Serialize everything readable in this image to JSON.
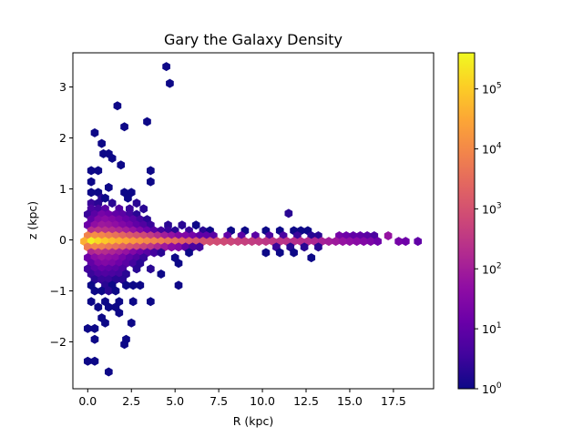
{
  "chart_data": {
    "type": "hexbin",
    "title": "Gary the Galaxy Density",
    "xlabel": "R (kpc)",
    "ylabel": "z (kpc)",
    "xlim": [
      -0.85,
      19.8
    ],
    "ylim": [
      -2.92,
      3.67
    ],
    "xticks": [
      0.0,
      2.5,
      5.0,
      7.5,
      10.0,
      12.5,
      15.0,
      17.5
    ],
    "xtick_labels": [
      "0.0",
      "2.5",
      "5.0",
      "7.5",
      "10.0",
      "12.5",
      "15.0",
      "17.5"
    ],
    "yticks": [
      -2,
      -1,
      0,
      1,
      2,
      3
    ],
    "ytick_labels": [
      "−2",
      "−1",
      "0",
      "1",
      "2",
      "3"
    ],
    "colormap": "plasma",
    "color_scale": "log",
    "colorbar_range": [
      1,
      400000
    ],
    "colorbar_ticks": [
      {
        "base": "10",
        "exp": "0",
        "value": 1
      },
      {
        "base": "10",
        "exp": "1",
        "value": 10
      },
      {
        "base": "10",
        "exp": "2",
        "value": 100
      },
      {
        "base": "10",
        "exp": "3",
        "value": 1000
      },
      {
        "base": "10",
        "exp": "4",
        "value": 10000
      },
      {
        "base": "10",
        "exp": "5",
        "value": 100000
      }
    ],
    "points": [
      [
        4.5,
        3.4,
        1
      ],
      [
        4.7,
        3.07,
        1
      ],
      [
        1.7,
        2.63,
        1
      ],
      [
        3.4,
        2.32,
        1
      ],
      [
        2.1,
        2.22,
        1
      ],
      [
        0.4,
        2.1,
        1
      ],
      [
        0.8,
        1.89,
        1
      ],
      [
        0.9,
        1.69,
        1
      ],
      [
        1.2,
        1.69,
        1
      ],
      [
        1.4,
        1.6,
        1
      ],
      [
        1.9,
        1.47,
        1
      ],
      [
        0.2,
        1.36,
        1
      ],
      [
        0.6,
        1.36,
        1
      ],
      [
        3.6,
        1.36,
        1
      ],
      [
        0.2,
        1.14,
        1
      ],
      [
        3.6,
        1.14,
        1
      ],
      [
        1.2,
        1.03,
        1
      ],
      [
        0.2,
        0.93,
        1
      ],
      [
        0.6,
        0.93,
        1
      ],
      [
        2.1,
        0.93,
        1
      ],
      [
        2.5,
        0.93,
        1
      ],
      [
        0.8,
        0.82,
        2
      ],
      [
        1.0,
        0.82,
        1
      ],
      [
        2.3,
        0.82,
        1
      ],
      [
        11.5,
        0.52,
        2
      ],
      [
        0.2,
        0.72,
        3
      ],
      [
        0.6,
        0.72,
        2
      ],
      [
        1.4,
        0.72,
        2
      ],
      [
        2.8,
        0.72,
        2
      ],
      [
        0.2,
        0.61,
        5
      ],
      [
        0.6,
        0.61,
        4
      ],
      [
        1.0,
        0.61,
        8
      ],
      [
        1.8,
        0.61,
        6
      ],
      [
        2.4,
        0.61,
        3
      ],
      [
        3.2,
        0.61,
        2
      ],
      [
        0.0,
        0.5,
        3
      ],
      [
        0.4,
        0.5,
        8
      ],
      [
        0.8,
        0.5,
        20
      ],
      [
        1.2,
        0.5,
        15
      ],
      [
        1.6,
        0.5,
        10
      ],
      [
        2.0,
        0.5,
        8
      ],
      [
        2.4,
        0.5,
        4
      ],
      [
        2.8,
        0.5,
        2
      ],
      [
        0.2,
        0.4,
        10
      ],
      [
        0.6,
        0.4,
        30
      ],
      [
        1.0,
        0.4,
        40
      ],
      [
        1.4,
        0.4,
        30
      ],
      [
        1.8,
        0.4,
        20
      ],
      [
        2.2,
        0.4,
        12
      ],
      [
        2.6,
        0.4,
        8
      ],
      [
        3.0,
        0.4,
        4
      ],
      [
        3.4,
        0.4,
        2
      ],
      [
        0.0,
        0.29,
        15
      ],
      [
        0.4,
        0.29,
        50
      ],
      [
        0.8,
        0.29,
        80
      ],
      [
        1.2,
        0.29,
        70
      ],
      [
        1.6,
        0.29,
        50
      ],
      [
        2.0,
        0.29,
        30
      ],
      [
        2.4,
        0.29,
        20
      ],
      [
        2.8,
        0.29,
        10
      ],
      [
        3.2,
        0.29,
        6
      ],
      [
        3.6,
        0.29,
        3
      ],
      [
        4.6,
        0.29,
        2
      ],
      [
        5.4,
        0.29,
        2
      ],
      [
        6.2,
        0.29,
        1
      ],
      [
        0.2,
        0.18,
        200
      ],
      [
        0.6,
        0.18,
        300
      ],
      [
        1.0,
        0.18,
        250
      ],
      [
        1.4,
        0.18,
        200
      ],
      [
        1.8,
        0.18,
        150
      ],
      [
        2.2,
        0.18,
        100
      ],
      [
        2.6,
        0.18,
        60
      ],
      [
        3.0,
        0.18,
        30
      ],
      [
        3.4,
        0.18,
        15
      ],
      [
        3.8,
        0.18,
        8
      ],
      [
        4.2,
        0.18,
        4
      ],
      [
        4.6,
        0.18,
        3
      ],
      [
        5.0,
        0.18,
        2
      ],
      [
        5.8,
        0.18,
        3
      ],
      [
        6.6,
        0.18,
        2
      ],
      [
        7.0,
        0.18,
        1
      ],
      [
        8.2,
        0.18,
        1
      ],
      [
        9.0,
        0.18,
        1
      ],
      [
        10.2,
        0.18,
        1
      ],
      [
        11.0,
        0.18,
        1
      ],
      [
        11.8,
        0.18,
        1
      ],
      [
        12.2,
        0.18,
        1
      ],
      [
        12.6,
        0.18,
        1
      ],
      [
        0.0,
        0.08,
        8000
      ],
      [
        0.4,
        0.08,
        12000
      ],
      [
        0.8,
        0.08,
        9000
      ],
      [
        1.2,
        0.08,
        6000
      ],
      [
        1.6,
        0.08,
        4000
      ],
      [
        2.0,
        0.08,
        2500
      ],
      [
        2.4,
        0.08,
        1500
      ],
      [
        2.8,
        0.08,
        1000
      ],
      [
        3.2,
        0.08,
        700
      ],
      [
        3.6,
        0.08,
        400
      ],
      [
        4.0,
        0.08,
        200
      ],
      [
        4.4,
        0.08,
        100
      ],
      [
        4.8,
        0.08,
        60
      ],
      [
        5.2,
        0.08,
        30
      ],
      [
        5.6,
        0.08,
        30
      ],
      [
        6.0,
        0.08,
        20
      ],
      [
        6.4,
        0.08,
        10
      ],
      [
        6.8,
        0.08,
        10
      ],
      [
        7.2,
        0.08,
        8
      ],
      [
        8.0,
        0.08,
        10
      ],
      [
        8.8,
        0.08,
        8
      ],
      [
        9.6,
        0.08,
        8
      ],
      [
        10.4,
        0.08,
        5
      ],
      [
        11.2,
        0.08,
        5
      ],
      [
        12.0,
        0.08,
        3
      ],
      [
        12.8,
        0.08,
        2
      ],
      [
        13.2,
        0.08,
        2
      ],
      [
        14.4,
        0.08,
        20
      ],
      [
        14.8,
        0.08,
        15
      ],
      [
        15.2,
        0.08,
        10
      ],
      [
        15.6,
        0.08,
        10
      ],
      [
        16.0,
        0.08,
        8
      ],
      [
        16.4,
        0.08,
        5
      ],
      [
        17.2,
        0.08,
        60
      ],
      [
        -0.2,
        -0.03,
        40000
      ],
      [
        0.2,
        -0.03,
        300000
      ],
      [
        0.6,
        -0.03,
        150000
      ],
      [
        1.0,
        -0.03,
        90000
      ],
      [
        1.4,
        -0.03,
        60000
      ],
      [
        1.8,
        -0.03,
        40000
      ],
      [
        2.2,
        -0.03,
        30000
      ],
      [
        2.6,
        -0.03,
        20000
      ],
      [
        3.0,
        -0.03,
        15000
      ],
      [
        3.4,
        -0.03,
        10000
      ],
      [
        3.8,
        -0.03,
        8000
      ],
      [
        4.2,
        -0.03,
        6000
      ],
      [
        4.6,
        -0.03,
        4000
      ],
      [
        5.0,
        -0.03,
        3000
      ],
      [
        5.4,
        -0.03,
        2000
      ],
      [
        5.8,
        -0.03,
        1500
      ],
      [
        6.2,
        -0.03,
        1200
      ],
      [
        6.6,
        -0.03,
        1000
      ],
      [
        7.0,
        -0.03,
        900
      ],
      [
        7.4,
        -0.03,
        800
      ],
      [
        7.8,
        -0.03,
        700
      ],
      [
        8.2,
        -0.03,
        600
      ],
      [
        8.6,
        -0.03,
        500
      ],
      [
        9.0,
        -0.03,
        450
      ],
      [
        9.4,
        -0.03,
        400
      ],
      [
        9.8,
        -0.03,
        350
      ],
      [
        10.2,
        -0.03,
        300
      ],
      [
        10.6,
        -0.03,
        300
      ],
      [
        11.0,
        -0.03,
        280
      ],
      [
        11.4,
        -0.03,
        250
      ],
      [
        11.8,
        -0.03,
        220
      ],
      [
        12.2,
        -0.03,
        200
      ],
      [
        12.6,
        -0.03,
        180
      ],
      [
        13.0,
        -0.03,
        150
      ],
      [
        13.4,
        -0.03,
        120
      ],
      [
        13.8,
        -0.03,
        100
      ],
      [
        14.2,
        -0.03,
        80
      ],
      [
        14.6,
        -0.03,
        60
      ],
      [
        15.0,
        -0.03,
        50
      ],
      [
        15.4,
        -0.03,
        40
      ],
      [
        15.8,
        -0.03,
        30
      ],
      [
        16.2,
        -0.03,
        25
      ],
      [
        16.6,
        -0.03,
        15
      ],
      [
        17.8,
        -0.03,
        20
      ],
      [
        18.2,
        -0.03,
        15
      ],
      [
        18.9,
        -0.03,
        10
      ],
      [
        0.0,
        -0.14,
        6000
      ],
      [
        0.4,
        -0.14,
        9000
      ],
      [
        0.8,
        -0.14,
        7000
      ],
      [
        1.2,
        -0.14,
        5000
      ],
      [
        1.6,
        -0.14,
        3500
      ],
      [
        2.0,
        -0.14,
        2000
      ],
      [
        2.4,
        -0.14,
        1200
      ],
      [
        2.8,
        -0.14,
        800
      ],
      [
        3.2,
        -0.14,
        500
      ],
      [
        3.6,
        -0.14,
        300
      ],
      [
        4.0,
        -0.14,
        150
      ],
      [
        4.4,
        -0.14,
        80
      ],
      [
        4.8,
        -0.14,
        40
      ],
      [
        5.2,
        -0.14,
        30
      ],
      [
        5.6,
        -0.14,
        10
      ],
      [
        6.0,
        -0.14,
        5
      ],
      [
        6.4,
        -0.14,
        4
      ],
      [
        10.8,
        -0.14,
        3
      ],
      [
        11.6,
        -0.14,
        2
      ],
      [
        12.4,
        -0.14,
        2
      ],
      [
        13.2,
        -0.14,
        2
      ],
      [
        0.2,
        -0.25,
        150
      ],
      [
        0.6,
        -0.25,
        250
      ],
      [
        1.0,
        -0.25,
        200
      ],
      [
        1.4,
        -0.25,
        150
      ],
      [
        1.8,
        -0.25,
        100
      ],
      [
        2.2,
        -0.25,
        60
      ],
      [
        2.6,
        -0.25,
        30
      ],
      [
        3.0,
        -0.25,
        15
      ],
      [
        3.4,
        -0.25,
        8
      ],
      [
        3.8,
        -0.25,
        4
      ],
      [
        4.2,
        -0.25,
        2
      ],
      [
        5.8,
        -0.25,
        1
      ],
      [
        10.2,
        -0.25,
        1
      ],
      [
        11.0,
        -0.25,
        1
      ],
      [
        11.8,
        -0.25,
        1
      ],
      [
        0.0,
        -0.35,
        15
      ],
      [
        0.4,
        -0.35,
        40
      ],
      [
        0.8,
        -0.35,
        60
      ],
      [
        1.2,
        -0.35,
        50
      ],
      [
        1.6,
        -0.35,
        40
      ],
      [
        2.0,
        -0.35,
        20
      ],
      [
        2.4,
        -0.35,
        10
      ],
      [
        2.8,
        -0.35,
        6
      ],
      [
        3.2,
        -0.35,
        3
      ],
      [
        5.0,
        -0.35,
        1
      ],
      [
        12.8,
        -0.35,
        1
      ],
      [
        0.2,
        -0.46,
        10
      ],
      [
        0.6,
        -0.46,
        25
      ],
      [
        1.0,
        -0.46,
        30
      ],
      [
        1.4,
        -0.46,
        25
      ],
      [
        1.8,
        -0.46,
        15
      ],
      [
        2.2,
        -0.46,
        8
      ],
      [
        2.6,
        -0.46,
        4
      ],
      [
        3.0,
        -0.46,
        2
      ],
      [
        5.2,
        -0.46,
        1
      ],
      [
        0.0,
        -0.57,
        4
      ],
      [
        0.4,
        -0.57,
        8
      ],
      [
        0.8,
        -0.57,
        12
      ],
      [
        1.2,
        -0.57,
        10
      ],
      [
        1.6,
        -0.57,
        8
      ],
      [
        2.0,
        -0.57,
        5
      ],
      [
        2.8,
        -0.57,
        2
      ],
      [
        3.6,
        -0.57,
        2
      ],
      [
        0.2,
        -0.67,
        3
      ],
      [
        0.6,
        -0.67,
        5
      ],
      [
        1.0,
        -0.67,
        6
      ],
      [
        1.4,
        -0.67,
        5
      ],
      [
        1.8,
        -0.67,
        4
      ],
      [
        2.2,
        -0.67,
        2
      ],
      [
        4.2,
        -0.67,
        1
      ],
      [
        0.4,
        -0.78,
        2
      ],
      [
        0.8,
        -0.78,
        3
      ],
      [
        1.2,
        -0.78,
        3
      ],
      [
        1.6,
        -0.78,
        2
      ],
      [
        2.0,
        -0.78,
        2
      ],
      [
        0.2,
        -0.89,
        1
      ],
      [
        1.0,
        -0.89,
        2
      ],
      [
        1.4,
        -0.89,
        1
      ],
      [
        2.2,
        -0.89,
        1
      ],
      [
        2.6,
        -0.89,
        1
      ],
      [
        3.0,
        -0.89,
        1
      ],
      [
        5.2,
        -0.89,
        1
      ],
      [
        0.4,
        -1.0,
        1
      ],
      [
        0.8,
        -1.0,
        1
      ],
      [
        1.2,
        -1.0,
        2
      ],
      [
        1.6,
        -1.0,
        1
      ],
      [
        0.2,
        -1.21,
        1
      ],
      [
        1.0,
        -1.21,
        1
      ],
      [
        1.8,
        -1.21,
        1
      ],
      [
        2.6,
        -1.21,
        1
      ],
      [
        3.6,
        -1.21,
        1
      ],
      [
        0.6,
        -1.32,
        1
      ],
      [
        1.2,
        -1.32,
        1
      ],
      [
        1.6,
        -1.32,
        1
      ],
      [
        1.8,
        -1.43,
        1
      ],
      [
        0.8,
        -1.53,
        1
      ],
      [
        1.0,
        -1.63,
        1
      ],
      [
        2.5,
        -1.63,
        1
      ],
      [
        0.0,
        -1.74,
        1
      ],
      [
        0.4,
        -1.74,
        1
      ],
      [
        0.4,
        -1.95,
        1
      ],
      [
        2.2,
        -1.95,
        1
      ],
      [
        2.1,
        -2.05,
        1
      ],
      [
        0.0,
        -2.38,
        1
      ],
      [
        0.4,
        -2.38,
        1
      ],
      [
        1.2,
        -2.59,
        1
      ]
    ]
  }
}
